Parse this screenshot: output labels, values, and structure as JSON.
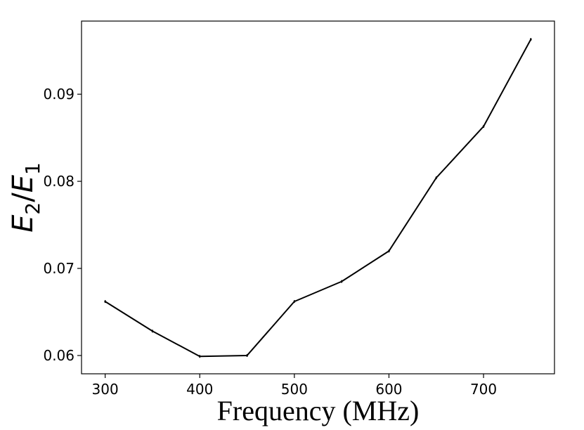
{
  "chart_data": {
    "type": "line",
    "xlabel": "Frequency (MHz)",
    "ylabel": {
      "e2": "E",
      "e2_sub": "2",
      "slash": "/",
      "e1": "E",
      "e1_sub": "1"
    },
    "xlim": [
      275,
      775
    ],
    "ylim": [
      0.0579,
      0.0984
    ],
    "xticks": [
      300,
      400,
      500,
      600,
      700
    ],
    "yticks": [
      0.06,
      0.07,
      0.08,
      0.09
    ],
    "xtick_labels": [
      "300",
      "400",
      "500",
      "600",
      "700"
    ],
    "ytick_labels": [
      "0.06",
      "0.07",
      "0.08",
      "0.09"
    ],
    "grid": false,
    "series": [
      {
        "color": "#000000",
        "x": [
          300,
          350,
          400,
          450,
          500,
          550,
          600,
          650,
          700,
          750
        ],
        "y": [
          0.0662,
          0.0628,
          0.0599,
          0.06,
          0.0662,
          0.0685,
          0.072,
          0.0804,
          0.0863,
          0.0963
        ],
        "yerr": [
          0.0001,
          0.0001,
          0.0001,
          0.0001,
          0.0001,
          0.0001,
          0.0001,
          0.0001,
          0.0001,
          0.0001
        ]
      }
    ]
  }
}
